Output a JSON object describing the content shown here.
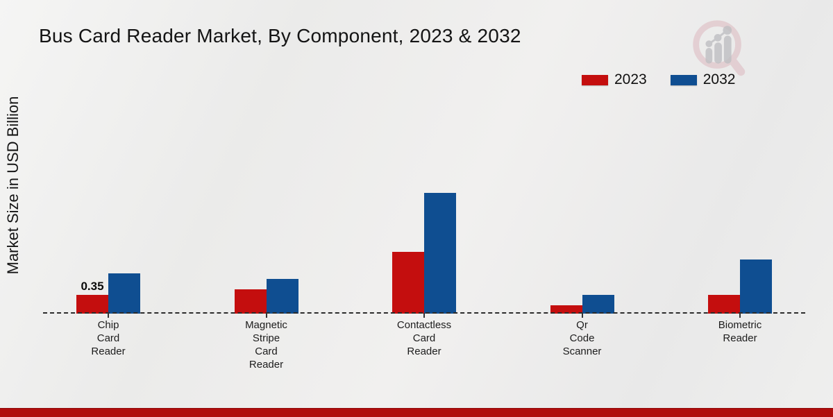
{
  "title": "Bus Card Reader Market, By Component, 2023 & 2032",
  "y_axis_label": "Market Size in USD Billion",
  "chart_data": {
    "type": "bar",
    "title": "Bus Card Reader Market, By Component, 2023 & 2032",
    "xlabel": "",
    "ylabel": "Market Size in USD Billion",
    "unit": "USD Billion",
    "categories": [
      "Chip Card Reader",
      "Magnetic Stripe Card Reader",
      "Contactless Card Reader",
      "Qr Code Scanner",
      "Biometric Reader"
    ],
    "category_display_lines": [
      "Chip\nCard\nReader",
      "Magnetic\nStripe\nCard\nReader",
      "Contactless\nCard\nReader",
      "Qr\nCode\nScanner",
      "Biometric\nReader"
    ],
    "series": [
      {
        "name": "2023",
        "color": "#c40e0e",
        "values": [
          0.35,
          0.45,
          1.15,
          0.15,
          0.35
        ]
      },
      {
        "name": "2032",
        "color": "#0f4e91",
        "values": [
          0.75,
          0.65,
          2.25,
          0.35,
          1.0
        ]
      }
    ],
    "data_labels": [
      {
        "series_index": 0,
        "category_index": 0,
        "text": "0.35"
      }
    ],
    "ylim": [
      0,
      2.5
    ],
    "grid": false,
    "legend_position": "top-right",
    "baseline_style": "dashed",
    "y_axis_ticks_visible": false
  },
  "colors": {
    "background": "#ededec",
    "title_text": "#141414",
    "axis_text": "#1c1c1c",
    "baseline": "#2b2b2b",
    "bottom_strip": "#b00d0d",
    "logo_ring": "#d9aeb6",
    "logo_chart": "#bfbfc3"
  },
  "branding": {
    "logo_name": "magnifier-growth-chart-logo"
  }
}
